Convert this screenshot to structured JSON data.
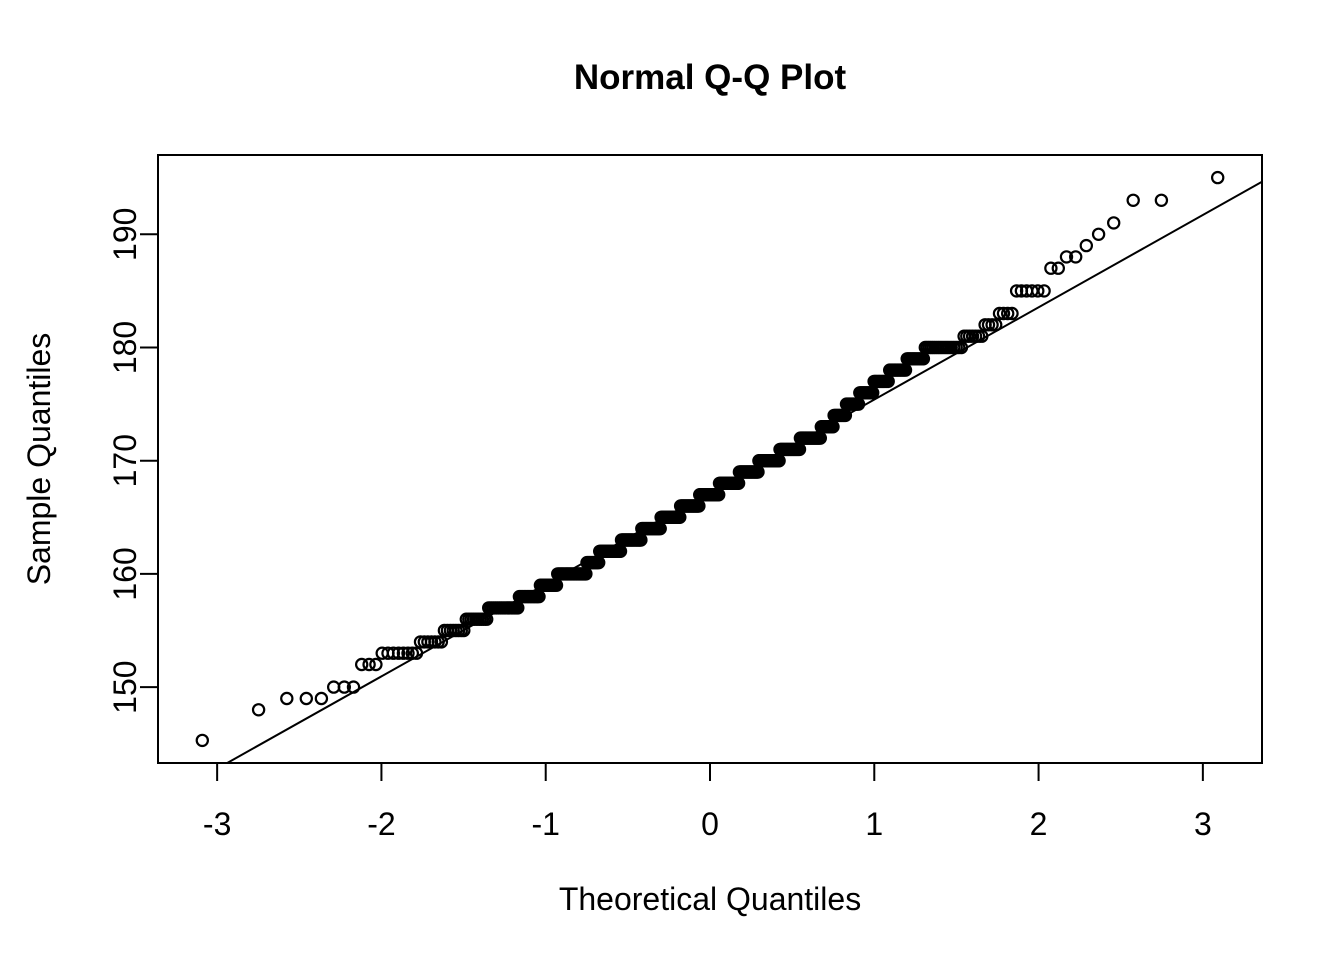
{
  "chart_data": {
    "type": "scatter",
    "subtype": "normal-qq-plot",
    "title": "Normal Q-Q Plot",
    "xlabel": "Theoretical Quantiles",
    "ylabel": "Sample Quantiles",
    "x_ticks": [
      -3,
      -2,
      -1,
      0,
      1,
      2,
      3
    ],
    "y_ticks": [
      150,
      160,
      170,
      180,
      190
    ],
    "xlim": [
      -3.36,
      3.36
    ],
    "ylim": [
      143.3,
      197.0
    ],
    "n": 500,
    "marker": "open-circle",
    "point_color": "#000000",
    "line_color": "#000000",
    "background": "#ffffff",
    "grid": "off",
    "legend": "none",
    "quantile_method": "ppoints: p_i = (i - 0.5) / n",
    "sample_frequencies": {
      "values": [
        145.3,
        148,
        149,
        150,
        152,
        153,
        154,
        155,
        156,
        157,
        158,
        159,
        160,
        161,
        162,
        163,
        164,
        165,
        166,
        167,
        168,
        169,
        170,
        171,
        172,
        173,
        174,
        175,
        176,
        177,
        178,
        179,
        180,
        181,
        182,
        183,
        185,
        187,
        188,
        189,
        190,
        191,
        193,
        195
      ],
      "counts": [
        1,
        1,
        3,
        3,
        3,
        8,
        7,
        8,
        10,
        17,
        14,
        13,
        25,
        12,
        22,
        22,
        22,
        23,
        23,
        24,
        24,
        23,
        24,
        22,
        21,
        12,
        11,
        11,
        11,
        11,
        11,
        10,
        17,
        7,
        4,
        4,
        6,
        2,
        2,
        1,
        1,
        1,
        2,
        1
      ]
    },
    "qqline": {
      "slope": 8.15,
      "intercept": 167.25
    }
  }
}
